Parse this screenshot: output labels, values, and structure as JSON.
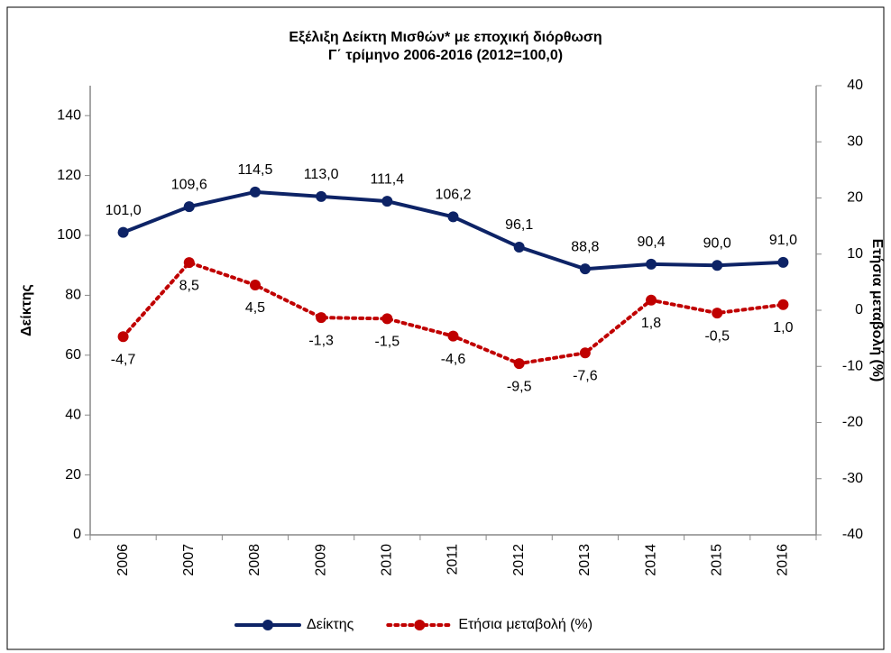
{
  "chart_data": {
    "type": "line",
    "title": "Εξέλιξη Δείκτη Μισθών* με εποχική διόρθωση",
    "subtitle": "Γ΄ τρίμηνο 2006-2016 (2012=100,0)",
    "y_label": "Δείκτης",
    "y2_label": "Ετήσια μεταβολή (%)",
    "categories": [
      "2006",
      "2007",
      "2008",
      "2009",
      "2010",
      "2011",
      "2012",
      "2013",
      "2014",
      "2015",
      "2016"
    ],
    "series": [
      {
        "name": "Δείκτης",
        "color": "#0d2366",
        "line_style": "solid",
        "values": [
          101.0,
          109.6,
          114.5,
          113.0,
          111.4,
          106.2,
          96.1,
          88.8,
          90.4,
          90.0,
          91.0
        ],
        "value_labels": [
          "101,0",
          "109,6",
          "114,5",
          "113,0",
          "111,4",
          "106,2",
          "96,1",
          "88,8",
          "90,4",
          "90,0",
          "91,0"
        ]
      },
      {
        "name": "Ετήσια μεταβολή (%)",
        "color": "#c00000",
        "line_style": "dotted",
        "axis": "y2",
        "values": [
          -4.7,
          8.5,
          4.5,
          -1.3,
          -1.5,
          -4.6,
          -9.5,
          -7.6,
          1.8,
          -0.5,
          1.0
        ],
        "value_labels": [
          "-4,7",
          "8,5",
          "4,5",
          "-1,3",
          "-1,5",
          "-4,6",
          "-9,5",
          "-7,6",
          "1,8",
          "-0,5",
          "1,0"
        ]
      }
    ],
    "ylim": [
      0,
      150
    ],
    "yticks": [
      0,
      20,
      40,
      60,
      80,
      100,
      120,
      140
    ],
    "y2lim": [
      -40,
      40
    ],
    "y2ticks": [
      -40,
      -30,
      -20,
      -10,
      0,
      10,
      20,
      30,
      40
    ],
    "grid": false,
    "legend": "bottom"
  }
}
